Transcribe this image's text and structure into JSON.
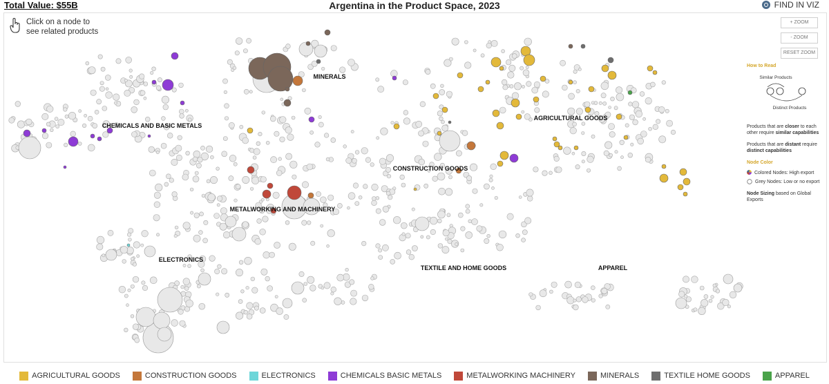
{
  "header": {
    "total_value": "Total Value: $55B",
    "title": "Argentina in the Product Space, 2023",
    "find_label": "FIND IN VIZ"
  },
  "hint": {
    "line1": "Click on a node to",
    "line2": "see related products"
  },
  "zoom": {
    "zoom_in": "+ ZOOM",
    "zoom_out": "- ZOOM",
    "reset": "RESET ZOOM"
  },
  "clusters": {
    "minerals": "MINERALS",
    "chemicals": "CHEMICALS AND BASIC METALS",
    "agricultural": "AGRICULTURAL GOODS",
    "construction": "CONSTRUCTION GOODS",
    "metalworking": "METALWORKING AND MACHINERY",
    "electronics": "ELECTRONICS",
    "textile": "TEXTILE AND HOME GOODS",
    "apparel": "APPAREL"
  },
  "how_to_read": {
    "heading": "How to Read",
    "similar": "Similar Products",
    "distinct": "Distinct Products",
    "closer_pre": "Products that are ",
    "closer_bold": "closer",
    "closer_mid": " to each other require ",
    "closer_bold2": "similar capabilities",
    "distant_pre": "Products that are ",
    "distant_bold": "distant",
    "distant_mid": " require ",
    "distant_bold2": "distinct capabilities",
    "node_color_heading": "Node Color",
    "colored_nodes": "Colored Nodes: High export",
    "grey_nodes": "Grey Nodes: Low or no export",
    "sizing_bold": "Node Sizing",
    "sizing_rest": " based on Global Exports"
  },
  "colors": {
    "agricultural": "#e3b93a",
    "construction": "#c4773a",
    "electronics": "#6ed6d9",
    "chemicals": "#8e3bd6",
    "metalworking": "#c0483a",
    "minerals": "#7b675a",
    "textile": "#6e6e6e",
    "apparel": "#4aa34a",
    "grey_node": "#e8e8e8"
  },
  "legend": [
    {
      "label": "AGRICULTURAL GOODS",
      "color": "#e3b93a"
    },
    {
      "label": "CONSTRUCTION GOODS",
      "color": "#c4773a"
    },
    {
      "label": "ELECTRONICS",
      "color": "#6ed6d9"
    },
    {
      "label": "CHEMICALS BASIC METALS",
      "color": "#8e3bd6"
    },
    {
      "label": "METALWORKING MACHINERY",
      "color": "#c0483a"
    },
    {
      "label": "MINERALS",
      "color": "#7b675a"
    },
    {
      "label": "TEXTILE HOME GOODS",
      "color": "#6e6e6e"
    },
    {
      "label": "APPAREL",
      "color": "#4aa34a"
    }
  ]
}
